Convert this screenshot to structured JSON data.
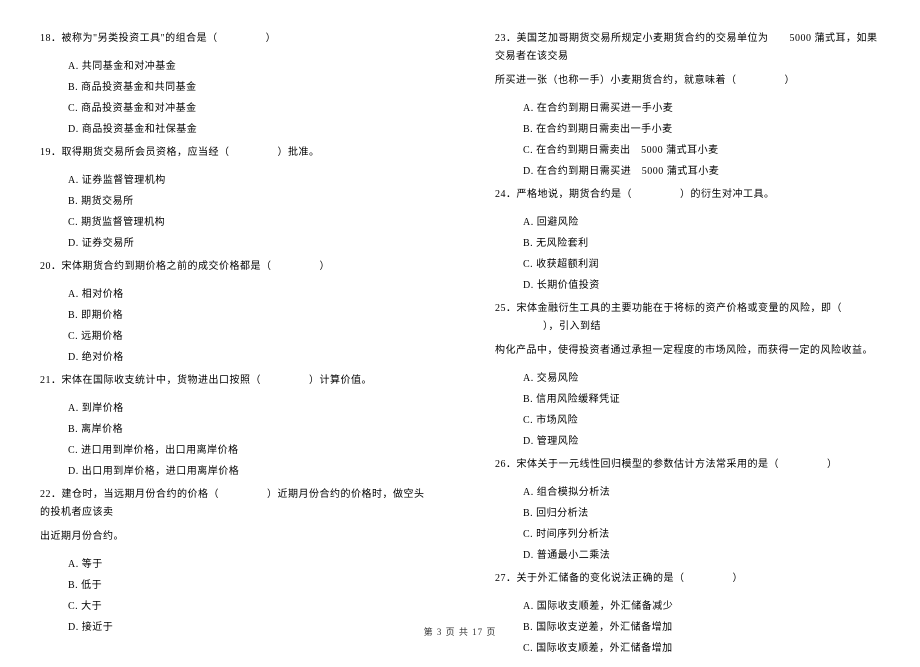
{
  "fontsize_question": 10,
  "fontsize_footer": 9,
  "text_color": "#000000",
  "background_color": "#ffffff",
  "left_column": {
    "questions": [
      {
        "num": "18．",
        "stem_before": "被称为\"另类投资工具\"的组合是（",
        "stem_after": "）",
        "options": [
          {
            "label": "A.",
            "text": "共同基金和对冲基金"
          },
          {
            "label": "B.",
            "text": "商品投资基金和共同基金"
          },
          {
            "label": "C.",
            "text": "商品投资基金和对冲基金"
          },
          {
            "label": "D.",
            "text": "商品投资基金和社保基金"
          }
        ]
      },
      {
        "num": "19．",
        "stem_before": "取得期货交易所会员资格，应当经（",
        "stem_after": "）批准。",
        "options": [
          {
            "label": "A.",
            "text": "证券监督管理机构"
          },
          {
            "label": "B.",
            "text": "期货交易所"
          },
          {
            "label": "C.",
            "text": "期货监督管理机构"
          },
          {
            "label": "D.",
            "text": "证券交易所"
          }
        ]
      },
      {
        "num": "20．",
        "stem_before": "宋体期货合约到期价格之前的成交价格都是（",
        "stem_after": "）",
        "options": [
          {
            "label": "A.",
            "text": "相对价格"
          },
          {
            "label": "B.",
            "text": "即期价格"
          },
          {
            "label": "C.",
            "text": "远期价格"
          },
          {
            "label": "D.",
            "text": "绝对价格"
          }
        ]
      },
      {
        "num": "21．",
        "stem_before": "宋体在国际收支统计中，货物进出口按照（",
        "stem_after": "）计算价值。",
        "options": [
          {
            "label": "A.",
            "text": "到岸价格"
          },
          {
            "label": "B.",
            "text": "离岸价格"
          },
          {
            "label": "C.",
            "text": "进口用到岸价格，出口用离岸价格"
          },
          {
            "label": "D.",
            "text": "出口用到岸价格，进口用离岸价格"
          }
        ]
      },
      {
        "num": "22．",
        "stem_before": "建仓时，当远期月份合约的价格（",
        "stem_after": "）近期月份合约的价格时，做空头的投机者应该卖",
        "continuation": "出近期月份合约。",
        "options": [
          {
            "label": "A.",
            "text": "等于"
          },
          {
            "label": "B.",
            "text": "低于"
          },
          {
            "label": "C.",
            "text": "大于"
          },
          {
            "label": "D.",
            "text": "接近于"
          }
        ]
      }
    ]
  },
  "right_column": {
    "questions": [
      {
        "num": "23．",
        "stem_before": "美国芝加哥期货交易所规定小麦期货合约的交易单位为　　5000 蒲式耳，如果交易者在该交易",
        "stem_after": "",
        "continuation_before": "所买进一张（也称一手）小麦期货合约，就意味着（",
        "continuation_after": "）",
        "options": [
          {
            "label": "A.",
            "text": "在合约到期日需买进一手小麦"
          },
          {
            "label": "B.",
            "text": "在合约到期日需卖出一手小麦"
          },
          {
            "label": "C.",
            "text": "在合约到期日需卖出　5000 蒲式耳小麦"
          },
          {
            "label": "D.",
            "text": "在合约到期日需买进　5000 蒲式耳小麦"
          }
        ]
      },
      {
        "num": "24．",
        "stem_before": "严格地说，期货合约是（",
        "stem_after": "）的衍生对冲工具。",
        "options": [
          {
            "label": "A.",
            "text": "回避风险"
          },
          {
            "label": "B.",
            "text": "无风险套利"
          },
          {
            "label": "C.",
            "text": "收获超额利润"
          },
          {
            "label": "D.",
            "text": "长期价值投资"
          }
        ]
      },
      {
        "num": "25．",
        "stem_before": "宋体金融衍生工具的主要功能在于将标的资产价格或变量的风险，即（",
        "stem_after": "），引入到结",
        "continuation": "构化产品中，使得投资者通过承担一定程度的市场风险，而获得一定的风险收益。",
        "options": [
          {
            "label": "A.",
            "text": "交易风险"
          },
          {
            "label": "B.",
            "text": "信用风险缓释凭证"
          },
          {
            "label": "C.",
            "text": "市场风险"
          },
          {
            "label": "D.",
            "text": "管理风险"
          }
        ]
      },
      {
        "num": "26．",
        "stem_before": "宋体关于一元线性回归模型的参数估计方法常采用的是（",
        "stem_after": "）",
        "options": [
          {
            "label": "A.",
            "text": "组合模拟分析法"
          },
          {
            "label": "B.",
            "text": "回归分析法"
          },
          {
            "label": "C.",
            "text": "时间序列分析法"
          },
          {
            "label": "D.",
            "text": "普通最小二乘法"
          }
        ]
      },
      {
        "num": "27．",
        "stem_before": "关于外汇储备的变化说法正确的是（",
        "stem_after": "）",
        "options": [
          {
            "label": "A.",
            "text": "国际收支顺差，外汇储备减少"
          },
          {
            "label": "B.",
            "text": "国际收支逆差，外汇储备增加"
          },
          {
            "label": "C.",
            "text": "国际收支顺差，外汇储备增加"
          }
        ]
      }
    ]
  },
  "footer": "第 3 页 共 17 页"
}
